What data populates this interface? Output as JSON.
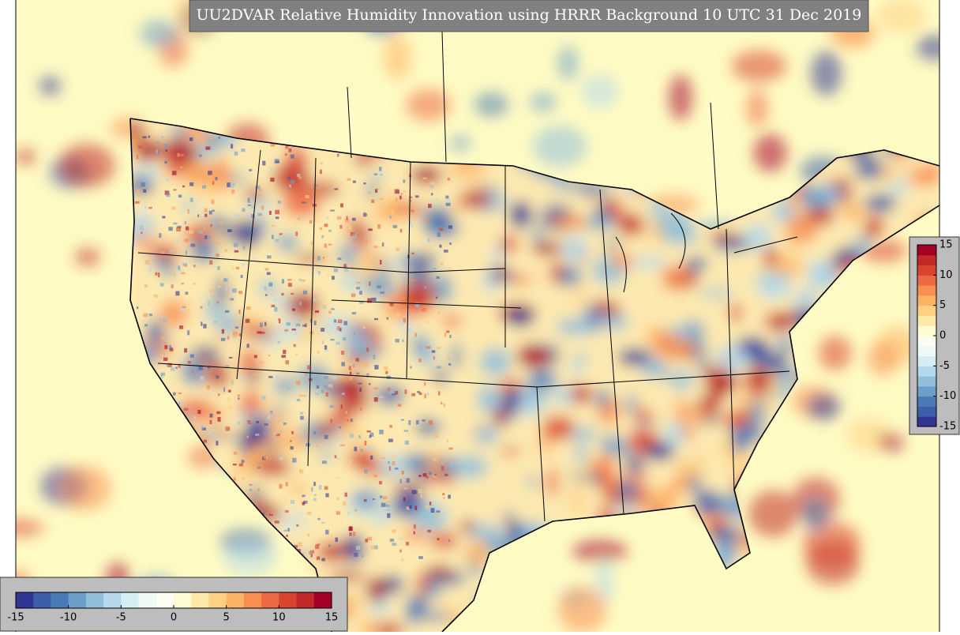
{
  "title": "UU2DVAR Relative Humidity Innovation using HRRR Background 10 UTC 31 Dec 2019",
  "colormap": [
    "#313695",
    "#3d5ea8",
    "#4a7bb7",
    "#6c9ec9",
    "#91bfdb",
    "#b5d9ea",
    "#d6edf4",
    "#eef8f4",
    "#fbfdf0",
    "#fffbd2",
    "#fee9a8",
    "#fdd084",
    "#fdb365",
    "#f88e52",
    "#ec6a43",
    "#d94430",
    "#c12a27",
    "#a50026"
  ],
  "colorbars": [
    {
      "orientation": "horizontal",
      "range": [
        -15,
        15
      ],
      "ticks": [
        -15,
        -10,
        -5,
        0,
        5,
        10,
        15
      ]
    },
    {
      "orientation": "vertical",
      "range": [
        -15,
        15
      ],
      "ticks": [
        -15,
        -10,
        -5,
        0,
        5,
        10,
        15
      ]
    }
  ]
}
